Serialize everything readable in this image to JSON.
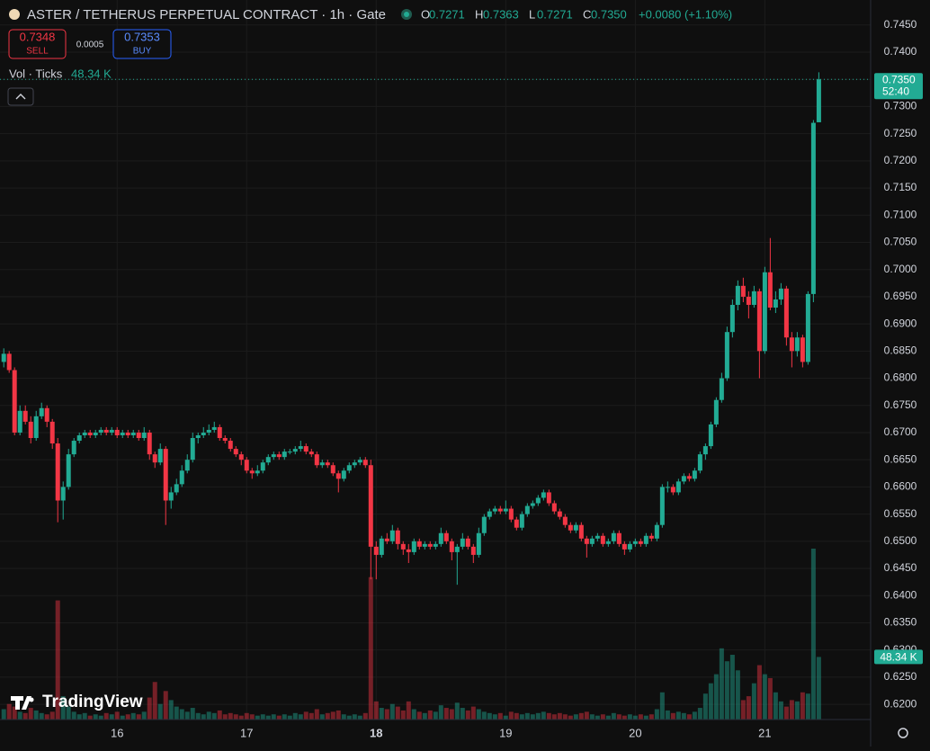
{
  "header": {
    "symbol": "ASTER / TETHERUS PERPETUAL CONTRACT · 1h · Gate",
    "ohlc": [
      {
        "key": "O",
        "value": "0.7271"
      },
      {
        "key": "H",
        "value": "0.7363"
      },
      {
        "key": "L",
        "value": "0.7271"
      },
      {
        "key": "C",
        "value": "0.7350"
      }
    ],
    "change": "+0.0080 (+1.10%)"
  },
  "trade": {
    "sell_price": "0.7348",
    "sell": "SELL",
    "spread": "0.0005",
    "buy_price": "0.7353",
    "buy": "BUY"
  },
  "volume_legend": {
    "name": "Vol · Ticks",
    "value": "48.34 K"
  },
  "last_price": {
    "label": "0.7350",
    "countdown": "52:40"
  },
  "branding": "TradingView",
  "chart_data": {
    "type": "candlestick",
    "up_color": "#22ab94",
    "down_color": "#f23645",
    "grid": true,
    "xlim": [
      -0.7,
      160.6
    ],
    "xticks": [
      {
        "value": 21,
        "label": "16"
      },
      {
        "value": 45,
        "label": "17"
      },
      {
        "value": 69,
        "label": "18"
      },
      {
        "value": 93,
        "label": "19"
      },
      {
        "value": 117,
        "label": "20"
      },
      {
        "value": 141,
        "label": "21"
      }
    ],
    "ylim": [
      0.6172,
      0.7496
    ],
    "yticks": [
      {
        "value": 0.62,
        "label": "0.6200"
      },
      {
        "value": 0.625,
        "label": "0.6250"
      },
      {
        "value": 0.63,
        "label": "0.6300"
      },
      {
        "value": 0.635,
        "label": "0.6350"
      },
      {
        "value": 0.64,
        "label": "0.6400"
      },
      {
        "value": 0.645,
        "label": "0.6450"
      },
      {
        "value": 0.65,
        "label": "0.6500"
      },
      {
        "value": 0.655,
        "label": "0.6550"
      },
      {
        "value": 0.66,
        "label": "0.6600"
      },
      {
        "value": 0.665,
        "label": "0.6650"
      },
      {
        "value": 0.67,
        "label": "0.6700"
      },
      {
        "value": 0.675,
        "label": "0.6750"
      },
      {
        "value": 0.68,
        "label": "0.6800"
      },
      {
        "value": 0.685,
        "label": "0.6850"
      },
      {
        "value": 0.69,
        "label": "0.6900"
      },
      {
        "value": 0.695,
        "label": "0.6950"
      },
      {
        "value": 0.7,
        "label": "0.7000"
      },
      {
        "value": 0.705,
        "label": "0.7050"
      },
      {
        "value": 0.71,
        "label": "0.7100"
      },
      {
        "value": 0.715,
        "label": "0.7150"
      },
      {
        "value": 0.72,
        "label": "0.7200"
      },
      {
        "value": 0.725,
        "label": "0.7250"
      },
      {
        "value": 0.73,
        "label": "0.7300"
      },
      {
        "value": 0.735,
        "label": "0.7350"
      },
      {
        "value": 0.74,
        "label": "0.7400"
      },
      {
        "value": 0.745,
        "label": "0.7450"
      }
    ],
    "candles": [
      [
        0.683,
        0.6855,
        0.682,
        0.6845
      ],
      [
        0.6845,
        0.685,
        0.681,
        0.6815
      ],
      [
        0.6815,
        0.682,
        0.6695,
        0.67
      ],
      [
        0.67,
        0.675,
        0.6695,
        0.674
      ],
      [
        0.674,
        0.675,
        0.6715,
        0.672
      ],
      [
        0.672,
        0.673,
        0.668,
        0.669
      ],
      [
        0.669,
        0.674,
        0.6685,
        0.673
      ],
      [
        0.673,
        0.6755,
        0.6725,
        0.6745
      ],
      [
        0.6745,
        0.675,
        0.671,
        0.672
      ],
      [
        0.672,
        0.6725,
        0.667,
        0.668
      ],
      [
        0.668,
        0.669,
        0.6535,
        0.6575
      ],
      [
        0.6575,
        0.661,
        0.654,
        0.66
      ],
      [
        0.66,
        0.667,
        0.6595,
        0.666
      ],
      [
        0.666,
        0.669,
        0.6655,
        0.6685
      ],
      [
        0.6685,
        0.67,
        0.668,
        0.6695
      ],
      [
        0.6695,
        0.6705,
        0.669,
        0.67
      ],
      [
        0.67,
        0.6705,
        0.669,
        0.6695
      ],
      [
        0.6695,
        0.6705,
        0.669,
        0.67
      ],
      [
        0.67,
        0.671,
        0.6695,
        0.6705
      ],
      [
        0.6705,
        0.671,
        0.6695,
        0.67
      ],
      [
        0.67,
        0.671,
        0.6695,
        0.6705
      ],
      [
        0.6705,
        0.671,
        0.669,
        0.6695
      ],
      [
        0.6695,
        0.6705,
        0.669,
        0.67
      ],
      [
        0.67,
        0.6705,
        0.669,
        0.6695
      ],
      [
        0.6695,
        0.6705,
        0.669,
        0.67
      ],
      [
        0.67,
        0.6705,
        0.6685,
        0.669
      ],
      [
        0.669,
        0.671,
        0.6685,
        0.67
      ],
      [
        0.67,
        0.6705,
        0.665,
        0.666
      ],
      [
        0.666,
        0.6665,
        0.6635,
        0.6645
      ],
      [
        0.6645,
        0.668,
        0.664,
        0.667
      ],
      [
        0.667,
        0.6675,
        0.653,
        0.6575
      ],
      [
        0.6575,
        0.66,
        0.656,
        0.659
      ],
      [
        0.659,
        0.6615,
        0.6585,
        0.6605
      ],
      [
        0.6605,
        0.664,
        0.66,
        0.663
      ],
      [
        0.663,
        0.666,
        0.6625,
        0.665
      ],
      [
        0.665,
        0.67,
        0.6645,
        0.669
      ],
      [
        0.669,
        0.67,
        0.668,
        0.6695
      ],
      [
        0.6695,
        0.671,
        0.669,
        0.67
      ],
      [
        0.67,
        0.6715,
        0.6695,
        0.6705
      ],
      [
        0.6705,
        0.672,
        0.67,
        0.671
      ],
      [
        0.671,
        0.6715,
        0.6685,
        0.669
      ],
      [
        0.669,
        0.6695,
        0.668,
        0.6685
      ],
      [
        0.6685,
        0.669,
        0.6665,
        0.667
      ],
      [
        0.667,
        0.6675,
        0.6655,
        0.666
      ],
      [
        0.666,
        0.6665,
        0.664,
        0.665
      ],
      [
        0.665,
        0.6655,
        0.6625,
        0.663
      ],
      [
        0.663,
        0.6635,
        0.6615,
        0.6625
      ],
      [
        0.6625,
        0.664,
        0.662,
        0.663
      ],
      [
        0.663,
        0.665,
        0.6625,
        0.6645
      ],
      [
        0.6645,
        0.666,
        0.664,
        0.6655
      ],
      [
        0.6655,
        0.6665,
        0.665,
        0.666
      ],
      [
        0.666,
        0.6665,
        0.665,
        0.6655
      ],
      [
        0.6655,
        0.667,
        0.665,
        0.6665
      ],
      [
        0.6665,
        0.667,
        0.666,
        0.6665
      ],
      [
        0.6665,
        0.6675,
        0.666,
        0.667
      ],
      [
        0.667,
        0.6685,
        0.6665,
        0.6675
      ],
      [
        0.6675,
        0.668,
        0.666,
        0.6665
      ],
      [
        0.6665,
        0.667,
        0.6655,
        0.666
      ],
      [
        0.666,
        0.6665,
        0.6635,
        0.664
      ],
      [
        0.664,
        0.665,
        0.6635,
        0.6645
      ],
      [
        0.6645,
        0.665,
        0.6635,
        0.664
      ],
      [
        0.664,
        0.6645,
        0.662,
        0.6625
      ],
      [
        0.6625,
        0.663,
        0.659,
        0.6615
      ],
      [
        0.6615,
        0.6635,
        0.661,
        0.663
      ],
      [
        0.663,
        0.6645,
        0.6625,
        0.664
      ],
      [
        0.664,
        0.665,
        0.6635,
        0.6645
      ],
      [
        0.6645,
        0.6655,
        0.664,
        0.665
      ],
      [
        0.665,
        0.6655,
        0.6635,
        0.664
      ],
      [
        0.664,
        0.665,
        0.643,
        0.649
      ],
      [
        0.649,
        0.65,
        0.643,
        0.6475
      ],
      [
        0.6475,
        0.651,
        0.647,
        0.6505
      ],
      [
        0.6505,
        0.6515,
        0.6495,
        0.65
      ],
      [
        0.65,
        0.653,
        0.6495,
        0.652
      ],
      [
        0.652,
        0.6525,
        0.6485,
        0.6495
      ],
      [
        0.6495,
        0.65,
        0.6475,
        0.6485
      ],
      [
        0.6485,
        0.6495,
        0.646,
        0.648
      ],
      [
        0.648,
        0.6505,
        0.6475,
        0.65
      ],
      [
        0.65,
        0.6505,
        0.6485,
        0.649
      ],
      [
        0.649,
        0.65,
        0.6485,
        0.6495
      ],
      [
        0.6495,
        0.65,
        0.6485,
        0.649
      ],
      [
        0.649,
        0.65,
        0.6485,
        0.6495
      ],
      [
        0.6495,
        0.6525,
        0.649,
        0.6515
      ],
      [
        0.6515,
        0.652,
        0.6495,
        0.65
      ],
      [
        0.65,
        0.6505,
        0.6465,
        0.648
      ],
      [
        0.648,
        0.6495,
        0.642,
        0.649
      ],
      [
        0.649,
        0.6515,
        0.6485,
        0.6505
      ],
      [
        0.6505,
        0.651,
        0.6485,
        0.649
      ],
      [
        0.649,
        0.6495,
        0.646,
        0.6475
      ],
      [
        0.6475,
        0.6525,
        0.647,
        0.6515
      ],
      [
        0.6515,
        0.655,
        0.651,
        0.6545
      ],
      [
        0.6545,
        0.656,
        0.654,
        0.6555
      ],
      [
        0.6555,
        0.6565,
        0.655,
        0.656
      ],
      [
        0.656,
        0.6565,
        0.655,
        0.6555
      ],
      [
        0.6555,
        0.6575,
        0.655,
        0.656
      ],
      [
        0.656,
        0.6565,
        0.6535,
        0.654
      ],
      [
        0.654,
        0.6545,
        0.652,
        0.6525
      ],
      [
        0.6525,
        0.6555,
        0.652,
        0.655
      ],
      [
        0.655,
        0.657,
        0.6545,
        0.6565
      ],
      [
        0.6565,
        0.6575,
        0.656,
        0.657
      ],
      [
        0.657,
        0.6585,
        0.6565,
        0.658
      ],
      [
        0.658,
        0.6595,
        0.6575,
        0.659
      ],
      [
        0.659,
        0.6595,
        0.6565,
        0.657
      ],
      [
        0.657,
        0.6575,
        0.655,
        0.6555
      ],
      [
        0.6555,
        0.656,
        0.654,
        0.6545
      ],
      [
        0.6545,
        0.655,
        0.6525,
        0.653
      ],
      [
        0.653,
        0.6535,
        0.6515,
        0.652
      ],
      [
        0.652,
        0.6535,
        0.6515,
        0.653
      ],
      [
        0.653,
        0.6535,
        0.65,
        0.6505
      ],
      [
        0.6505,
        0.651,
        0.647,
        0.6495
      ],
      [
        0.6495,
        0.651,
        0.649,
        0.6505
      ],
      [
        0.6505,
        0.6515,
        0.65,
        0.651
      ],
      [
        0.651,
        0.6515,
        0.649,
        0.6495
      ],
      [
        0.6495,
        0.6505,
        0.649,
        0.65
      ],
      [
        0.65,
        0.652,
        0.6495,
        0.6515
      ],
      [
        0.6515,
        0.652,
        0.649,
        0.6495
      ],
      [
        0.6495,
        0.65,
        0.6475,
        0.6485
      ],
      [
        0.6485,
        0.65,
        0.648,
        0.6495
      ],
      [
        0.6495,
        0.6505,
        0.649,
        0.65
      ],
      [
        0.65,
        0.6505,
        0.649,
        0.6495
      ],
      [
        0.6495,
        0.6515,
        0.649,
        0.651
      ],
      [
        0.651,
        0.6515,
        0.65,
        0.6505
      ],
      [
        0.6505,
        0.6535,
        0.65,
        0.653
      ],
      [
        0.653,
        0.6605,
        0.6525,
        0.66
      ],
      [
        0.66,
        0.661,
        0.659,
        0.66
      ],
      [
        0.66,
        0.6605,
        0.6585,
        0.659
      ],
      [
        0.659,
        0.6615,
        0.6585,
        0.661
      ],
      [
        0.661,
        0.6625,
        0.6605,
        0.662
      ],
      [
        0.662,
        0.6625,
        0.661,
        0.6615
      ],
      [
        0.6615,
        0.6635,
        0.661,
        0.663
      ],
      [
        0.663,
        0.6665,
        0.6625,
        0.666
      ],
      [
        0.666,
        0.668,
        0.665,
        0.6675
      ],
      [
        0.6675,
        0.672,
        0.667,
        0.6715
      ],
      [
        0.6715,
        0.6765,
        0.671,
        0.676
      ],
      [
        0.676,
        0.681,
        0.6755,
        0.68
      ],
      [
        0.68,
        0.6895,
        0.6795,
        0.6885
      ],
      [
        0.6885,
        0.6945,
        0.6875,
        0.6935
      ],
      [
        0.6935,
        0.698,
        0.6925,
        0.697
      ],
      [
        0.697,
        0.6985,
        0.694,
        0.695
      ],
      [
        0.695,
        0.696,
        0.691,
        0.6935
      ],
      [
        0.6935,
        0.697,
        0.693,
        0.696
      ],
      [
        0.696,
        0.6965,
        0.68,
        0.685
      ],
      [
        0.685,
        0.7005,
        0.6845,
        0.6995
      ],
      [
        0.6995,
        0.7058,
        0.6925,
        0.693
      ],
      [
        0.693,
        0.696,
        0.692,
        0.6945
      ],
      [
        0.6945,
        0.6975,
        0.6935,
        0.6965
      ],
      [
        0.6965,
        0.697,
        0.686,
        0.6875
      ],
      [
        0.6875,
        0.6885,
        0.682,
        0.685
      ],
      [
        0.685,
        0.6885,
        0.684,
        0.6875
      ],
      [
        0.6875,
        0.688,
        0.682,
        0.683
      ],
      [
        0.683,
        0.696,
        0.6825,
        0.6955
      ],
      [
        0.6955,
        0.7275,
        0.694,
        0.727
      ],
      [
        0.7271,
        0.7363,
        0.7271,
        0.735
      ]
    ],
    "volume": [
      8,
      12,
      10,
      6,
      5,
      9,
      7,
      5,
      4,
      6,
      92,
      18,
      10,
      6,
      4,
      5,
      3,
      4,
      3,
      5,
      4,
      6,
      3,
      4,
      5,
      4,
      6,
      17,
      29,
      12,
      22,
      15,
      10,
      8,
      6,
      9,
      5,
      4,
      6,
      5,
      7,
      4,
      5,
      4,
      3,
      5,
      4,
      3,
      4,
      3,
      4,
      3,
      4,
      3,
      5,
      4,
      6,
      5,
      8,
      4,
      5,
      6,
      7,
      4,
      3,
      4,
      3,
      5,
      110,
      14,
      9,
      8,
      12,
      10,
      7,
      14,
      8,
      6,
      5,
      7,
      6,
      11,
      9,
      8,
      13,
      9,
      7,
      10,
      8,
      6,
      5,
      4,
      5,
      3,
      6,
      5,
      4,
      5,
      4,
      5,
      6,
      5,
      4,
      5,
      4,
      3,
      4,
      5,
      6,
      4,
      3,
      4,
      3,
      5,
      4,
      3,
      4,
      3,
      4,
      3,
      4,
      8,
      21,
      7,
      5,
      6,
      5,
      4,
      6,
      9,
      20,
      28,
      35,
      55,
      45,
      50,
      38,
      15,
      18,
      28,
      42,
      35,
      32,
      21,
      14,
      10,
      15,
      14,
      21,
      20,
      132,
      48.34
    ]
  }
}
